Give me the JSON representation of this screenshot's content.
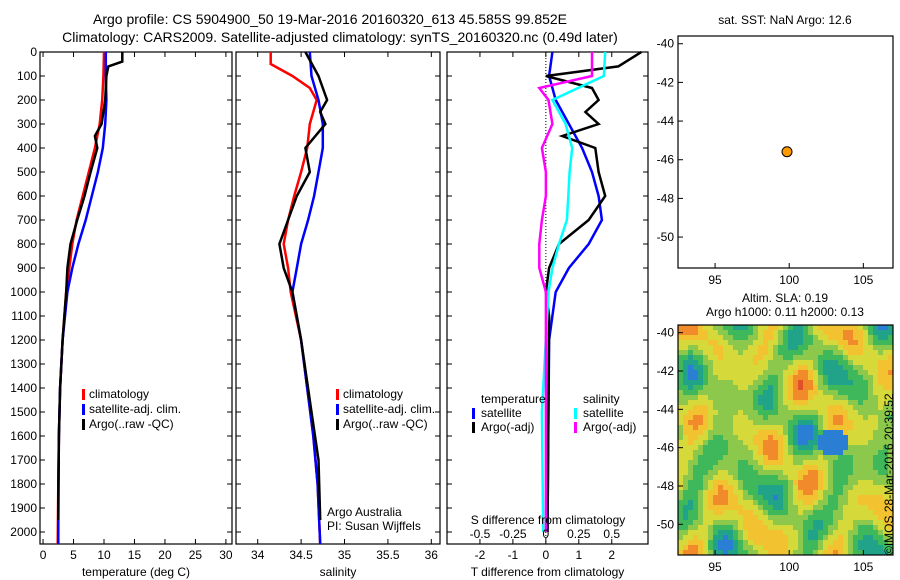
{
  "title_line1": "Argo profile: CS 5904900_50 19-Mar-2016 20160320_613 45.585S 99.852E",
  "title_line2": "Climatology: CARS2009. Satellite-adjusted climatology: synTS_20160320.nc (0.49d later)",
  "colors": {
    "clim": "#ff0000",
    "sat": "#0000ff",
    "argo": "#000000",
    "sal_sat": "#00ffff",
    "sal_argo": "#ff00ff",
    "dot": "#ff9900"
  },
  "chart_data": [
    {
      "type": "line",
      "id": "temperature",
      "xlabel": "temperature (deg C)",
      "xlim": [
        -0.5,
        31
      ],
      "ylim": [
        2050,
        0
      ],
      "xticks": [
        0,
        5,
        10,
        15,
        20,
        25,
        30
      ],
      "yticks": [
        0,
        100,
        200,
        300,
        400,
        500,
        600,
        700,
        800,
        900,
        1000,
        1100,
        1200,
        1300,
        1400,
        1500,
        1600,
        1700,
        1800,
        1900,
        2000
      ],
      "legend": [
        "climatology",
        "satellite-adj. clim.",
        "Argo(..raw -QC)"
      ],
      "series": [
        {
          "name": "climatology",
          "color": "#ff0000",
          "points": [
            [
              0,
              10.0
            ],
            [
              100,
              9.9
            ],
            [
              200,
              9.7
            ],
            [
              300,
              9.3
            ],
            [
              400,
              8.5
            ],
            [
              500,
              7.5
            ],
            [
              600,
              6.5
            ],
            [
              700,
              5.5
            ],
            [
              800,
              4.8
            ],
            [
              900,
              4.3
            ],
            [
              1000,
              3.8
            ],
            [
              1200,
              3.2
            ],
            [
              1400,
              2.8
            ],
            [
              1600,
              2.6
            ],
            [
              1800,
              2.5
            ],
            [
              2050,
              2.4
            ]
          ]
        },
        {
          "name": "satellite-adj. clim.",
          "color": "#0000ff",
          "points": [
            [
              0,
              10.3
            ],
            [
              100,
              10.3
            ],
            [
              200,
              10.4
            ],
            [
              300,
              10.2
            ],
            [
              400,
              9.8
            ],
            [
              500,
              9.0
            ],
            [
              600,
              8.0
            ],
            [
              700,
              7.0
            ],
            [
              800,
              5.8
            ],
            [
              900,
              4.8
            ],
            [
              1000,
              4.0
            ],
            [
              1200,
              3.2
            ],
            [
              1400,
              2.8
            ],
            [
              1600,
              2.6
            ],
            [
              1800,
              2.5
            ],
            [
              2050,
              2.5
            ]
          ]
        },
        {
          "name": "Argo(..raw -QC)",
          "color": "#000000",
          "points": [
            [
              0,
              13.0
            ],
            [
              40,
              13.0
            ],
            [
              60,
              10.7
            ],
            [
              100,
              10.4
            ],
            [
              200,
              10.2
            ],
            [
              300,
              9.6
            ],
            [
              350,
              8.5
            ],
            [
              400,
              8.9
            ],
            [
              500,
              7.8
            ],
            [
              600,
              6.8
            ],
            [
              700,
              5.6
            ],
            [
              800,
              4.5
            ],
            [
              900,
              4.0
            ],
            [
              1000,
              3.8
            ],
            [
              1200,
              3.2
            ],
            [
              1400,
              2.8
            ],
            [
              1600,
              2.6
            ],
            [
              1950,
              2.5
            ]
          ]
        }
      ]
    },
    {
      "type": "line",
      "id": "salinity",
      "xlabel": "salinity",
      "xlim": [
        33.75,
        36.1
      ],
      "ylim": [
        2050,
        0
      ],
      "xticks": [
        34,
        34.5,
        35,
        35.5,
        36
      ],
      "legend": [
        "climatology",
        "satellite-adj. clim.",
        "Argo(..raw -QC)"
      ],
      "annotation": [
        "Argo Australia",
        "PI: Susan Wijffels"
      ],
      "series": [
        {
          "name": "climatology",
          "color": "#ff0000",
          "points": [
            [
              0,
              34.15
            ],
            [
              50,
              34.15
            ],
            [
              100,
              34.4
            ],
            [
              150,
              34.6
            ],
            [
              200,
              34.68
            ],
            [
              300,
              34.6
            ],
            [
              400,
              34.57
            ],
            [
              500,
              34.5
            ],
            [
              600,
              34.42
            ],
            [
              700,
              34.35
            ],
            [
              800,
              34.3
            ],
            [
              900,
              34.35
            ],
            [
              1000,
              34.38
            ],
            [
              1200,
              34.5
            ],
            [
              1400,
              34.57
            ],
            [
              1600,
              34.64
            ],
            [
              1800,
              34.69
            ],
            [
              2050,
              34.72
            ]
          ]
        },
        {
          "name": "satellite-adj. clim.",
          "color": "#0000ff",
          "points": [
            [
              0,
              34.6
            ],
            [
              100,
              34.62
            ],
            [
              200,
              34.7
            ],
            [
              300,
              34.75
            ],
            [
              400,
              34.75
            ],
            [
              500,
              34.7
            ],
            [
              600,
              34.65
            ],
            [
              700,
              34.58
            ],
            [
              800,
              34.5
            ],
            [
              900,
              34.45
            ],
            [
              1000,
              34.4
            ],
            [
              1200,
              34.5
            ],
            [
              1400,
              34.57
            ],
            [
              1600,
              34.64
            ],
            [
              1800,
              34.69
            ],
            [
              2050,
              34.72
            ]
          ]
        },
        {
          "name": "Argo(..raw -QC)",
          "color": "#000000",
          "points": [
            [
              0,
              34.55
            ],
            [
              100,
              34.7
            ],
            [
              150,
              34.75
            ],
            [
              200,
              34.8
            ],
            [
              250,
              34.72
            ],
            [
              300,
              34.78
            ],
            [
              400,
              34.55
            ],
            [
              500,
              34.6
            ],
            [
              600,
              34.45
            ],
            [
              700,
              34.35
            ],
            [
              800,
              34.25
            ],
            [
              900,
              34.3
            ],
            [
              1000,
              34.4
            ],
            [
              1200,
              34.5
            ],
            [
              1500,
              34.62
            ],
            [
              1700,
              34.7
            ],
            [
              1950,
              34.72
            ]
          ]
        }
      ]
    },
    {
      "type": "line",
      "id": "difference",
      "xlabel": "T difference from climatology",
      "x2label": "S difference from climatology",
      "xlim": [
        -3,
        3.1
      ],
      "x2lim": [
        -0.75,
        0.775
      ],
      "ylim": [
        2050,
        0
      ],
      "xticks": [
        -2,
        -1,
        0,
        1,
        2
      ],
      "x2ticks": [
        -0.5,
        -0.25,
        0,
        0.25,
        0.5
      ],
      "legend_temp_title": "temperature",
      "legend_sal_title": "salinity",
      "legend": [
        "satellite",
        "Argo(-adj)",
        "satellite",
        "Argo(-adj)"
      ],
      "series": [
        {
          "name": "temperature satellite",
          "axis": "T",
          "color": "#0000ff",
          "points": [
            [
              0,
              0.2
            ],
            [
              100,
              0.1
            ],
            [
              200,
              0.3
            ],
            [
              300,
              0.7
            ],
            [
              400,
              1.1
            ],
            [
              500,
              1.4
            ],
            [
              600,
              1.6
            ],
            [
              700,
              1.7
            ],
            [
              800,
              1.3
            ],
            [
              900,
              0.7
            ],
            [
              1000,
              0.3
            ],
            [
              1200,
              0.1
            ],
            [
              2000,
              0.05
            ]
          ]
        },
        {
          "name": "temperature Argo(-adj)",
          "axis": "T",
          "color": "#000000",
          "points": [
            [
              0,
              2.9
            ],
            [
              60,
              2.2
            ],
            [
              100,
              0.0
            ],
            [
              150,
              1.4
            ],
            [
              200,
              1.6
            ],
            [
              250,
              1.2
            ],
            [
              300,
              1.6
            ],
            [
              350,
              0.5
            ],
            [
              400,
              1.5
            ],
            [
              500,
              1.6
            ],
            [
              600,
              1.8
            ],
            [
              700,
              1.3
            ],
            [
              800,
              0.4
            ],
            [
              900,
              0.1
            ],
            [
              1000,
              0.0
            ],
            [
              1100,
              0.1
            ],
            [
              2000,
              0.05
            ]
          ]
        },
        {
          "name": "salinity satellite",
          "axis": "S",
          "color": "#00ffff",
          "points": [
            [
              0,
              0.45
            ],
            [
              100,
              0.44
            ],
            [
              200,
              0.05
            ],
            [
              300,
              0.15
            ],
            [
              400,
              0.2
            ],
            [
              500,
              0.18
            ],
            [
              600,
              0.17
            ],
            [
              700,
              0.16
            ],
            [
              800,
              0.1
            ],
            [
              900,
              0.05
            ],
            [
              1000,
              0.02
            ],
            [
              1500,
              -0.03
            ],
            [
              2000,
              -0.02
            ]
          ]
        },
        {
          "name": "salinity Argo(-adj)",
          "axis": "S",
          "color": "#ff00ff",
          "points": [
            [
              0,
              0.35
            ],
            [
              100,
              0.35
            ],
            [
              150,
              -0.05
            ],
            [
              200,
              0.02
            ],
            [
              300,
              0.05
            ],
            [
              400,
              -0.03
            ],
            [
              500,
              0.0
            ],
            [
              600,
              0.0
            ],
            [
              700,
              -0.03
            ],
            [
              800,
              -0.05
            ],
            [
              900,
              -0.05
            ],
            [
              1000,
              0.0
            ],
            [
              2000,
              0.0
            ]
          ]
        }
      ]
    },
    {
      "type": "scatter",
      "id": "sst-map",
      "title": "sat. SST: NaN Argo: 12.6",
      "xlim": [
        92.5,
        107
      ],
      "ylim": [
        -51.6,
        -39.6
      ],
      "xticks": [
        95,
        100,
        105
      ],
      "yticks": [
        -40,
        -42,
        -44,
        -46,
        -48,
        -50
      ],
      "points": [
        [
          99.852,
          -45.585
        ]
      ]
    },
    {
      "type": "heatmap",
      "id": "sla-map",
      "title": "Altim. SLA: 0.19",
      "subtitle": "Argo h1000: 0.11 h2000: 0.13",
      "xlim": [
        92.5,
        107
      ],
      "ylim": [
        -51.6,
        -39.6
      ],
      "xticks": [
        95,
        100,
        105
      ],
      "yticks": [
        -40,
        -42,
        -44,
        -46,
        -48,
        -50
      ]
    }
  ],
  "side_label": "©IMOS 28-Mar-2016 20:39:52"
}
